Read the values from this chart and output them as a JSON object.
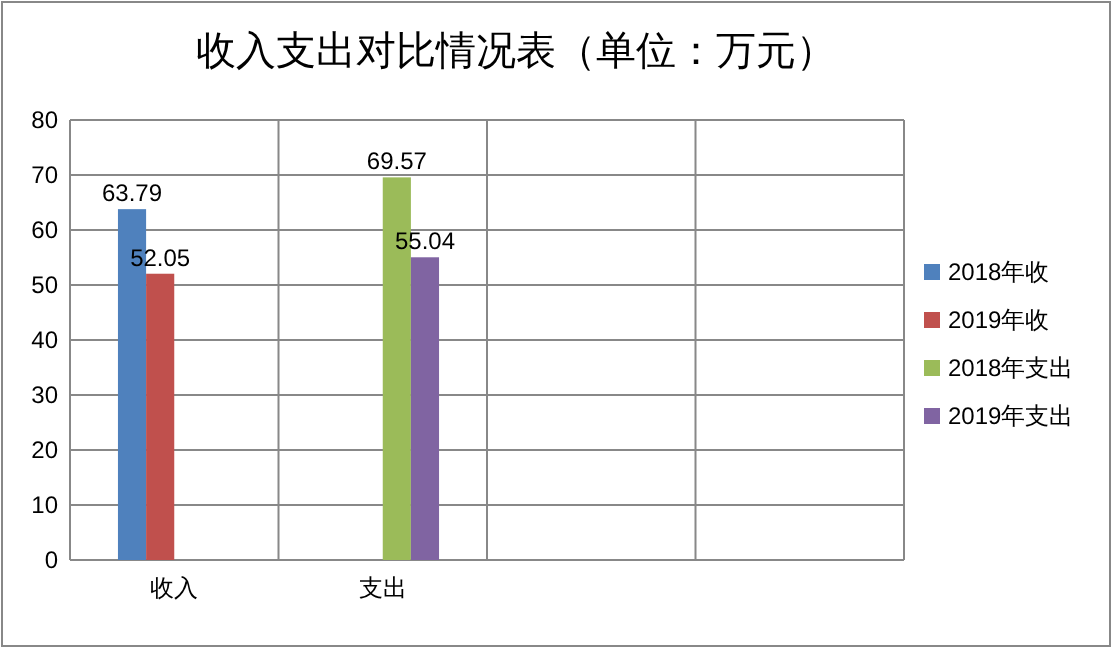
{
  "chart_data": {
    "type": "bar",
    "title": "收入支出对比情况表（单位：万元）",
    "categories": [
      "收入",
      "支出",
      null,
      null
    ],
    "series": [
      {
        "name": "2018年收",
        "color": "#4f81bd",
        "values": [
          63.79,
          null,
          null,
          null
        ]
      },
      {
        "name": "2019年收",
        "color": "#c0504d",
        "values": [
          52.05,
          null,
          null,
          null
        ]
      },
      {
        "name": "2018年支出",
        "color": "#9bbb59",
        "values": [
          null,
          69.57,
          null,
          null
        ]
      },
      {
        "name": "2019年支出",
        "color": "#8064a2",
        "values": [
          null,
          55.04,
          null,
          null
        ]
      }
    ],
    "ylim": [
      0,
      80
    ],
    "yticks": [
      0,
      10,
      20,
      30,
      40,
      50,
      60,
      70,
      80
    ],
    "grid": true,
    "legend": "right",
    "data_labels": true
  }
}
